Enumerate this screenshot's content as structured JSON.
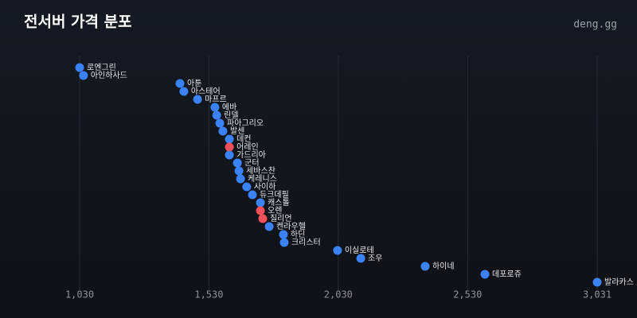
{
  "chart_data": {
    "type": "scatter",
    "title": "전서버 가격 분포",
    "brand": "deng.gg",
    "categories": [
      "로엔그린",
      "아인하사드",
      "아툰",
      "아스테어",
      "마프르",
      "에바",
      "린델",
      "파아그리오",
      "발센",
      "데컨",
      "어레인",
      "가드리아",
      "군터",
      "세바스찬",
      "케레니스",
      "사이하",
      "듀크데필",
      "캐스톨",
      "오렌",
      "질리언",
      "켄라우헬",
      "하딘",
      "크리스터",
      "이실로테",
      "조우",
      "하이네",
      "데포로쥬",
      "발라카스"
    ],
    "values": [
      1030,
      1045,
      1418,
      1433,
      1486,
      1553,
      1560,
      1572,
      1584,
      1609,
      1609,
      1609,
      1640,
      1646,
      1652,
      1676,
      1698,
      1729,
      1729,
      1738,
      1763,
      1818,
      1821,
      2027,
      2117,
      2366,
      2597,
      3031
    ],
    "colors": [
      "#3b82f6",
      "#3b82f6",
      "#3b82f6",
      "#3b82f6",
      "#3b82f6",
      "#3b82f6",
      "#3b82f6",
      "#3b82f6",
      "#3b82f6",
      "#3b82f6",
      "#f0505a",
      "#3b82f6",
      "#3b82f6",
      "#3b82f6",
      "#3b82f6",
      "#3b82f6",
      "#3b82f6",
      "#3b82f6",
      "#f0505a",
      "#f0505a",
      "#3b82f6",
      "#3b82f6",
      "#3b82f6",
      "#3b82f6",
      "#3b82f6",
      "#3b82f6",
      "#3b82f6",
      "#3b82f6"
    ],
    "xlim": [
      1030,
      3031
    ],
    "xticks": [
      {
        "value": 1030,
        "label": "1,030"
      },
      {
        "value": 1530,
        "label": "1,530"
      },
      {
        "value": 2030,
        "label": "2,030"
      },
      {
        "value": 2530,
        "label": "2,530"
      },
      {
        "value": 3031,
        "label": "3,031"
      }
    ],
    "grid": true
  }
}
